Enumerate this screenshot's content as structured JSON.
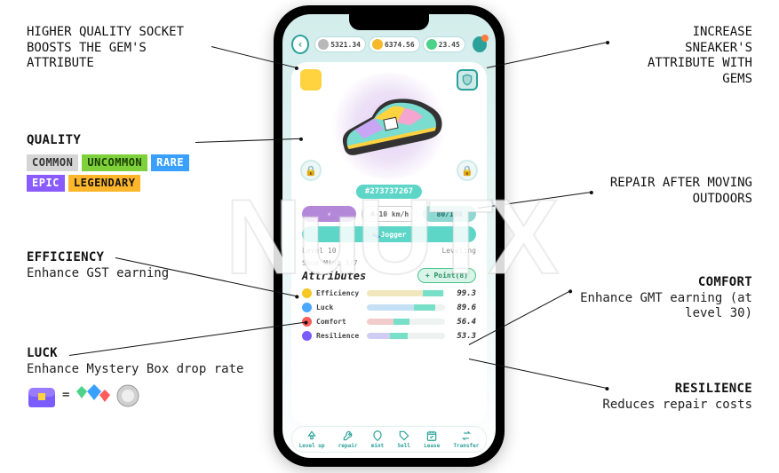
{
  "watermark": "NuUTX",
  "callouts": {
    "socket": "HIGHER QUALITY SOCKET BOOSTS THE GEM'S ATTRIBUTE",
    "gems": "INCREASE SNEAKER'S ATTRIBUTE WITH GEMS",
    "quality_hdr": "QUALITY",
    "repair": "REPAIR AFTER MOVING OUTDOORS",
    "efficiency_hdr": "EFFICIENCY",
    "efficiency_sub": "Enhance GST earning",
    "comfort_hdr": "COMFORT",
    "comfort_sub": "Enhance GMT earning (at level 30)",
    "luck_hdr": "LUCK",
    "luck_sub": "Enhance Mystery Box drop rate",
    "resilience_hdr": "RESILIENCE",
    "resilience_sub": "Reduces repair costs"
  },
  "quality_tiers": [
    {
      "label": "COMMON",
      "bg": "#d5d5d5",
      "fg": "#333"
    },
    {
      "label": "UNCOMMON",
      "bg": "#7fd13b",
      "fg": "#1a3d00"
    },
    {
      "label": "RARE",
      "bg": "#3aa0ff",
      "fg": "#fff"
    },
    {
      "label": "EPIC",
      "bg": "#8a5cff",
      "fg": "#fff"
    },
    {
      "label": "LEGENDARY",
      "bg": "#ffb62b",
      "fg": "#111"
    }
  ],
  "currencies": [
    {
      "color": "#b8b8b8",
      "value": "5321.34"
    },
    {
      "color": "#f5b92a",
      "value": "6374.56"
    },
    {
      "color": "#4dd28a",
      "value": "23.45"
    }
  ],
  "sneaker_id": "#273737267",
  "meta": {
    "type_label": "Jogger",
    "speed": "4-10 km/h",
    "durability": "80/100",
    "level_label": "Level 10",
    "level_state": "Leveling",
    "mint_label": "Shoe Mint 3/7"
  },
  "attributes_title": "Attributes",
  "add_points_label": "+ Point(8)",
  "attributes": [
    {
      "name": "Efficiency",
      "color": "#f6c823",
      "value": "99.3",
      "fill": 98,
      "seg_start": 72,
      "seg_end": 98
    },
    {
      "name": "Luck",
      "color": "#4aa8ff",
      "value": "89.6",
      "fill": 88,
      "seg_start": 60,
      "seg_end": 88
    },
    {
      "name": "Comfort",
      "color": "#ff5b5b",
      "value": "56.4",
      "fill": 55,
      "seg_start": 34,
      "seg_end": 55
    },
    {
      "name": "Resilience",
      "color": "#7a5cff",
      "value": "53.3",
      "fill": 52,
      "seg_start": 30,
      "seg_end": 52
    }
  ],
  "tabs": [
    {
      "label": "Level up",
      "icon": "levelup"
    },
    {
      "label": "repair",
      "icon": "repair"
    },
    {
      "label": "mint",
      "icon": "mint"
    },
    {
      "label": "Sell",
      "icon": "sell"
    },
    {
      "label": "Lease",
      "icon": "lease"
    },
    {
      "label": "Transfer",
      "icon": "transfer"
    }
  ],
  "colors": {
    "teal": "#2aa199",
    "mint": "#78e0c9",
    "bg_top": "#d3edec"
  }
}
